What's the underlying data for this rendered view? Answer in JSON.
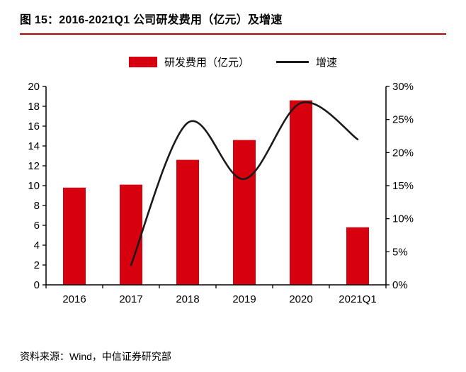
{
  "header": {
    "title": "图 15：2016-2021Q1 公司研发费用（亿元）及增速"
  },
  "legend": {
    "bar_label": "研发费用（亿元）",
    "line_label": "增速"
  },
  "footer": {
    "source": "资料来源：Wind，中信证券研究部"
  },
  "colors": {
    "bar": "#d7000f",
    "line": "#1a1a1a",
    "rule": "#c00000",
    "axis": "#000000"
  },
  "chart_data": {
    "type": "bar+line",
    "title": "图 15：2016-2021Q1 公司研发费用（亿元）及增速",
    "categories": [
      "2016",
      "2017",
      "2018",
      "2019",
      "2020",
      "2021Q1"
    ],
    "series": [
      {
        "name": "研发费用（亿元）",
        "type": "bar",
        "axis": "left",
        "values": [
          9.8,
          10.1,
          12.6,
          14.6,
          18.6,
          5.8
        ]
      },
      {
        "name": "增速",
        "type": "line",
        "axis": "right",
        "values": [
          null,
          3,
          24.5,
          16,
          27.5,
          22
        ]
      }
    ],
    "left_axis": {
      "min": 0,
      "max": 20,
      "step": 2
    },
    "right_axis": {
      "min": 0,
      "max": 30,
      "step": 5,
      "suffix": "%"
    },
    "grid": false,
    "legend_position": "top",
    "source_note": "资料来源：Wind，中信证券研究部"
  }
}
